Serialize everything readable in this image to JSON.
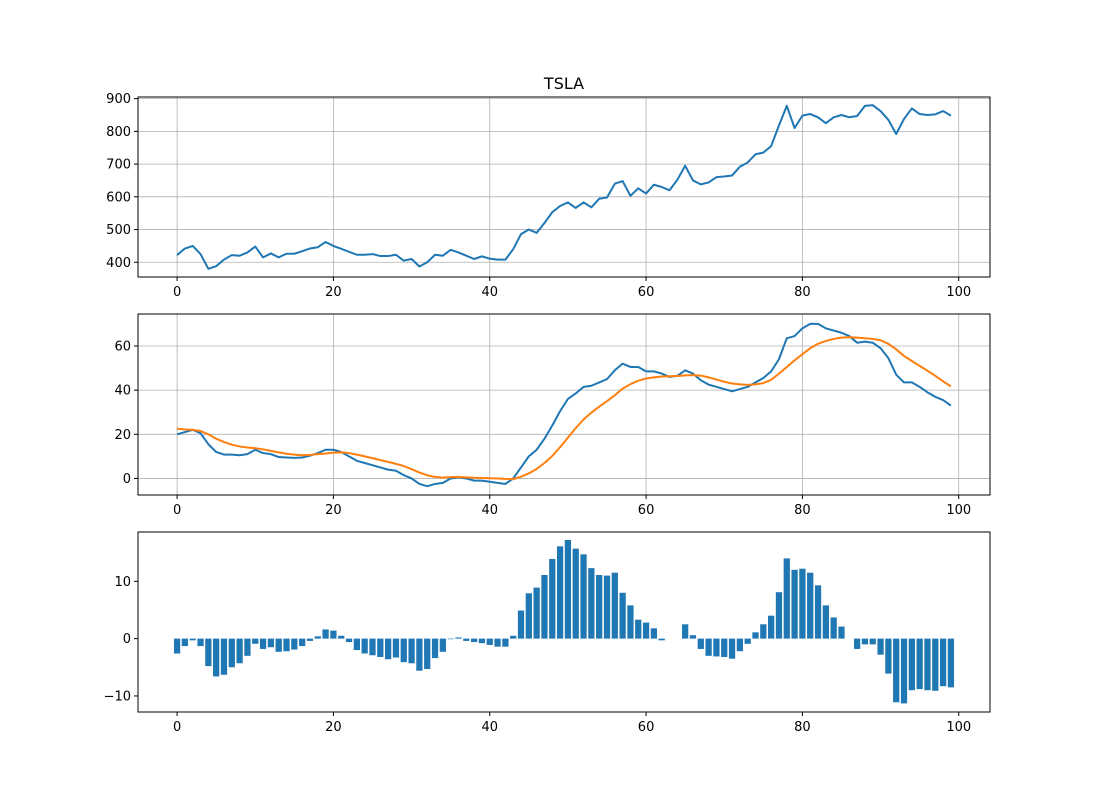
{
  "chart_data": [
    {
      "type": "line",
      "title": "TSLA",
      "xlabel": "",
      "ylabel": "",
      "xlim": [
        -5,
        104
      ],
      "ylim": [
        355,
        905
      ],
      "xticks": [
        0,
        20,
        40,
        60,
        80,
        100
      ],
      "yticks": [
        400,
        500,
        600,
        700,
        800,
        900
      ],
      "grid": true,
      "series": [
        {
          "color": "#1f77b4",
          "values": [
            422,
            442,
            450,
            425,
            380,
            388,
            408,
            422,
            420,
            430,
            448,
            415,
            427,
            415,
            426,
            426,
            434,
            442,
            446,
            462,
            450,
            441,
            432,
            423,
            423,
            425,
            419,
            419,
            423,
            405,
            410,
            387,
            400,
            423,
            420,
            438,
            430,
            420,
            410,
            418,
            411,
            408,
            408,
            440,
            486,
            500,
            490,
            520,
            553,
            572,
            583,
            566,
            583,
            568,
            594,
            598,
            640,
            648,
            603,
            626,
            610,
            637,
            630,
            620,
            652,
            695,
            650,
            638,
            644,
            660,
            662,
            665,
            692,
            705,
            730,
            735,
            755,
            818,
            878,
            810,
            848,
            853,
            843,
            825,
            843,
            850,
            843,
            847,
            878,
            880,
            862,
            835,
            792,
            838,
            870,
            853,
            850,
            852,
            862,
            848
          ]
        }
      ]
    },
    {
      "type": "line",
      "title": "",
      "xlabel": "",
      "ylabel": "",
      "xlim": [
        -5,
        104
      ],
      "ylim": [
        -7.5,
        74.5
      ],
      "xticks": [
        0,
        20,
        40,
        60,
        80,
        100
      ],
      "yticks": [
        0,
        20,
        40,
        60
      ],
      "grid": true,
      "series": [
        {
          "color": "#1f77b4",
          "values": [
            20,
            21,
            22,
            20.5,
            15.5,
            12,
            10.8,
            10.8,
            10.5,
            11,
            13,
            11.5,
            11,
            9.7,
            9.5,
            9.3,
            9.5,
            10.3,
            11.5,
            13,
            13,
            12,
            10,
            8,
            7,
            6,
            5,
            4,
            3.5,
            1.5,
            0,
            -2.5,
            -3.5,
            -2.5,
            -2,
            0,
            0.5,
            0,
            -1,
            -1,
            -1.5,
            -2,
            -2.5,
            0,
            5,
            10,
            13,
            18,
            24,
            30.5,
            36,
            38.5,
            41.5,
            42,
            43.5,
            45,
            49,
            52,
            50.5,
            50.5,
            48.5,
            48.5,
            47.5,
            46,
            46.5,
            49,
            47.5,
            44.5,
            42.5,
            41.5,
            40.5,
            39.5,
            40.5,
            41.5,
            43.5,
            45.5,
            48.5,
            54,
            63.5,
            64.5,
            68,
            70,
            70,
            68,
            67,
            66,
            64.5,
            61.5,
            62,
            61.5,
            59,
            54.5,
            47,
            43.5,
            43.5,
            41.5,
            39,
            37,
            35.5,
            33
          ]
        },
        {
          "color": "#ff7f0e",
          "values": [
            22.5,
            22.2,
            22,
            21.5,
            20,
            18,
            16.5,
            15.3,
            14.5,
            14,
            13.7,
            13.2,
            12.5,
            11.8,
            11.2,
            10.8,
            10.5,
            10.7,
            11,
            11.3,
            11.7,
            11.8,
            11.5,
            10.8,
            10,
            9.2,
            8.3,
            7.5,
            6.6,
            5.6,
            4.2,
            2.7,
            1.4,
            0.7,
            0.4,
            0.6,
            0.7,
            0.5,
            0.3,
            0.2,
            0.1,
            0,
            -0.2,
            -0.3,
            0.8,
            2.3,
            4.3,
            7,
            10.2,
            14.2,
            18.5,
            22.8,
            26.7,
            29.8,
            32.5,
            35,
            37.7,
            40.7,
            42.7,
            44.3,
            45.3,
            45.8,
            46.2,
            46.3,
            46.4,
            46.7,
            46.8,
            46.6,
            45.8,
            44.8,
            43.8,
            43,
            42.6,
            42.4,
            42.6,
            43.2,
            44.7,
            47.5,
            50.5,
            53.5,
            56.3,
            59,
            61,
            62.3,
            63.2,
            63.8,
            64,
            63.8,
            63.5,
            63.2,
            62.6,
            61,
            58.5,
            55.5,
            53.2,
            51,
            48.8,
            46.5,
            44,
            41.7
          ]
        }
      ]
    },
    {
      "type": "bar",
      "title": "",
      "xlabel": "",
      "ylabel": "",
      "xlim": [
        -5,
        104
      ],
      "ylim": [
        -12.8,
        18.6
      ],
      "xticks": [
        0,
        20,
        40,
        60,
        80,
        100
      ],
      "yticks": [
        -10,
        0,
        10
      ],
      "grid": false,
      "series": [
        {
          "color": "#1f77b4",
          "values": [
            -2.6,
            -1.3,
            -0.3,
            -1.3,
            -4.8,
            -6.6,
            -6.3,
            -5.0,
            -4.3,
            -3.0,
            -0.9,
            -1.8,
            -1.5,
            -2.3,
            -2.2,
            -1.9,
            -1.3,
            -0.4,
            0.4,
            1.6,
            1.4,
            0.5,
            -0.6,
            -2.0,
            -2.6,
            -2.9,
            -3.2,
            -3.6,
            -3.3,
            -4.1,
            -4.3,
            -5.6,
            -5.3,
            -3.4,
            -2.3,
            -0.1,
            0.2,
            -0.4,
            -0.6,
            -0.8,
            -1.1,
            -1.4,
            -1.4,
            0.5,
            4.9,
            7.9,
            8.9,
            11.1,
            13.9,
            16.1,
            17.2,
            15.7,
            14.7,
            12.3,
            11.1,
            11.0,
            11.5,
            8.0,
            5.8,
            3.3,
            2.8,
            1.8,
            -0.3,
            0,
            0,
            2.5,
            0.6,
            -1.8,
            -3.0,
            -3.1,
            -3.2,
            -3.5,
            -2.2,
            -0.9,
            1.1,
            2.5,
            4.0,
            8.1,
            14.0,
            12.0,
            12.2,
            11.5,
            9.3,
            5.8,
            3.7,
            2.1,
            0,
            -1.8,
            -1.0,
            -1.0,
            -2.8,
            -6.1,
            -11.1,
            -11.3,
            -9.0,
            -8.8,
            -9.0,
            -9.1,
            -8.3,
            -8.5
          ]
        }
      ]
    }
  ]
}
